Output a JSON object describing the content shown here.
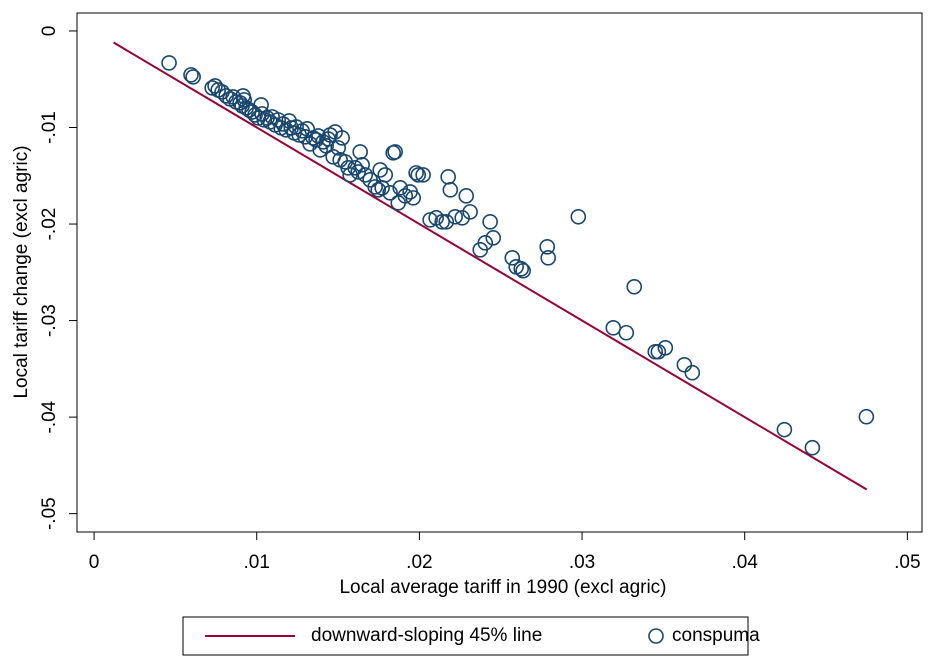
{
  "chart_data": {
    "type": "scatter",
    "x_label": "Local average tariff in 1990 (excl agric)",
    "y_label": "Local tariff change (excl agric)",
    "xlim": [
      -0.00105,
      0.0509
    ],
    "ylim": [
      -0.0519,
      0.00186
    ],
    "xticks": [
      0,
      {
        "value": 0.01,
        "label": ".01"
      },
      {
        "value": 0.02,
        "label": ".02"
      },
      {
        "value": 0.03,
        "label": ".03"
      },
      {
        "value": 0.04,
        "label": ".04"
      },
      {
        "value": 0.05,
        "label": ".05"
      }
    ],
    "yticks": [
      0,
      {
        "value": -0.01,
        "label": "-.01"
      },
      {
        "value": -0.02,
        "label": "-.02"
      },
      {
        "value": -0.03,
        "label": "-.03"
      },
      {
        "value": -0.04,
        "label": "-.04"
      },
      {
        "value": -0.05,
        "label": "-.05"
      }
    ],
    "legend": "bottom",
    "series": [
      {
        "name": "downward-sloping 45% line",
        "color": "#990033",
        "kind": "line",
        "x": [
          0.0012,
          0.0475
        ],
        "values": [
          -0.0012,
          -0.0475
        ]
      },
      {
        "name": "conspuma",
        "color": "#1a476f",
        "kind": "scatter",
        "x": [
          0.00461,
          0.00596,
          0.00609,
          0.00726,
          0.00744,
          0.00763,
          0.00787,
          0.00812,
          0.00836,
          0.00855,
          0.00873,
          0.00898,
          0.00916,
          0.0091,
          0.00923,
          0.00935,
          0.00953,
          0.00972,
          0.0099,
          0.01009,
          0.01027,
          0.01033,
          0.01046,
          0.01064,
          0.01082,
          0.01095,
          0.01113,
          0.01132,
          0.0115,
          0.01162,
          0.01181,
          0.01199,
          0.01212,
          0.0123,
          0.01242,
          0.01261,
          0.01279,
          0.01298,
          0.0131,
          0.01328,
          0.01347,
          0.01365,
          0.01378,
          0.0139,
          0.01408,
          0.01427,
          0.01439,
          0.01451,
          0.0147,
          0.01482,
          0.01501,
          0.01513,
          0.01525,
          0.01544,
          0.01562,
          0.01574,
          0.01605,
          0.01624,
          0.01636,
          0.01648,
          0.01667,
          0.01697,
          0.01728,
          0.01747,
          0.01759,
          0.01771,
          0.0179,
          0.0182,
          0.01839,
          0.01851,
          0.0187,
          0.01882,
          0.01913,
          0.01943,
          0.01962,
          0.0198,
          0.01993,
          0.02023,
          0.02066,
          0.02103,
          0.0214,
          0.02165,
          0.02177,
          0.0219,
          0.0222,
          0.02263,
          0.02288,
          0.02312,
          0.02374,
          0.02405,
          0.02435,
          0.02454,
          0.02571,
          0.02595,
          0.02626,
          0.02638,
          0.02786,
          0.02792,
          0.02977,
          0.03192,
          0.03272,
          0.03321,
          0.0345,
          0.03469,
          0.03512,
          0.03629,
          0.03678,
          0.04244,
          0.04416,
          0.04748
        ],
        "values": [
          -0.00331,
          -0.00455,
          -0.00476,
          -0.0059,
          -0.00569,
          -0.00611,
          -0.00631,
          -0.00673,
          -0.00704,
          -0.00683,
          -0.00735,
          -0.00745,
          -0.00673,
          -0.00776,
          -0.00714,
          -0.00797,
          -0.00818,
          -0.00839,
          -0.0087,
          -0.00901,
          -0.00766,
          -0.00859,
          -0.00921,
          -0.00901,
          -0.00942,
          -0.0089,
          -0.00973,
          -0.00921,
          -0.01004,
          -0.00963,
          -0.01025,
          -0.00932,
          -0.01004,
          -0.01056,
          -0.00994,
          -0.01077,
          -0.01035,
          -0.01097,
          -0.01014,
          -0.0117,
          -0.01108,
          -0.01128,
          -0.01087,
          -0.01232,
          -0.01149,
          -0.0119,
          -0.01118,
          -0.01077,
          -0.01304,
          -0.01046,
          -0.01211,
          -0.01335,
          -0.01108,
          -0.01356,
          -0.01418,
          -0.01491,
          -0.01418,
          -0.0146,
          -0.01253,
          -0.01387,
          -0.01491,
          -0.01542,
          -0.01615,
          -0.01646,
          -0.01439,
          -0.01625,
          -0.01491,
          -0.01677,
          -0.01263,
          -0.01253,
          -0.01781,
          -0.01625,
          -0.01708,
          -0.01667,
          -0.01729,
          -0.0147,
          -0.01491,
          -0.01491,
          -0.01957,
          -0.01936,
          -0.01977,
          -0.01977,
          -0.01511,
          -0.01646,
          -0.01925,
          -0.01936,
          -0.01708,
          -0.01874,
          -0.02267,
          -0.02195,
          -0.01977,
          -0.02143,
          -0.0235,
          -0.02443,
          -0.02464,
          -0.02484,
          -0.02236,
          -0.0235,
          -0.01925,
          -0.03075,
          -0.03126,
          -0.0265,
          -0.03323,
          -0.03323,
          -0.03282,
          -0.03458,
          -0.0354,
          -0.0413,
          -0.04317,
          -0.03996
        ]
      }
    ]
  }
}
